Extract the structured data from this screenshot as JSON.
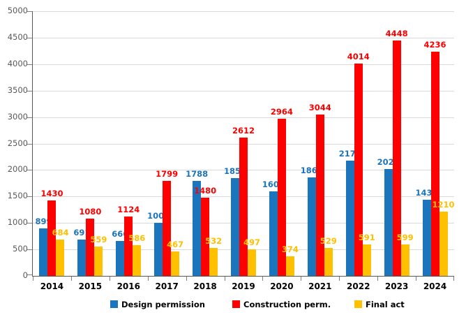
{
  "chart_data": {
    "type": "bar",
    "title": "",
    "xlabel": "",
    "ylabel": "",
    "categories": [
      "2014",
      "2015",
      "2016",
      "2017",
      "2018",
      "2019",
      "2020",
      "2021",
      "2022",
      "2023",
      "2024"
    ],
    "series": [
      {
        "name": "Design permission",
        "color": "#1B75BC",
        "values": [
          899,
          691,
          666,
          1008,
          1788,
          1853,
          1600,
          1863,
          2173,
          2023,
          1438
        ]
      },
      {
        "name": "Construction perm.",
        "color": "#FF0000",
        "values": [
          1430,
          1080,
          1124,
          1799,
          1480,
          2612,
          2964,
          3044,
          4014,
          4448,
          4236
        ]
      },
      {
        "name": "Final act",
        "color": "#FFC000",
        "values": [
          684,
          559,
          586,
          467,
          532,
          497,
          374,
          529,
          591,
          599,
          1210
        ]
      }
    ],
    "ylim": [
      0,
      5000
    ],
    "ytick_interval": 500,
    "ytick_labels": [
      "0",
      "500",
      "1000",
      "1500",
      "2000",
      "2500",
      "3000",
      "3500",
      "4000",
      "4500",
      "5000"
    ],
    "grid": true,
    "data_labels": true,
    "legend_position": "bottom",
    "colors": {
      "background": "#FFFFFF",
      "gridline": "#D9D9D9",
      "axis": "#595959",
      "tick": "#808080",
      "ytick_label": "#595959",
      "category_label": "#000000",
      "legend_label": "#000000"
    }
  }
}
